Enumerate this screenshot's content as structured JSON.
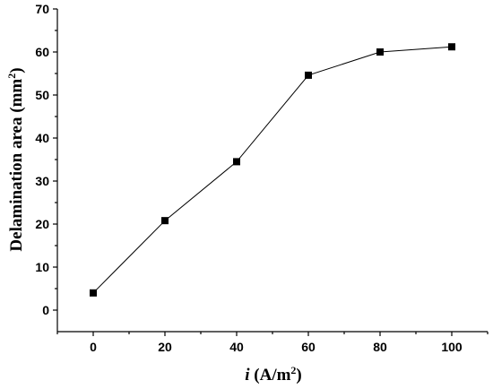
{
  "chart_data": {
    "type": "line",
    "title": "",
    "xlabel": {
      "italic": "i",
      "pre": " (A/m",
      "sup": "2",
      "post": ")"
    },
    "ylabel": {
      "pre": "Delamination area (mm",
      "sup": "2",
      "post": ")"
    },
    "xlim": [
      -10,
      110
    ],
    "ylim": [
      -5,
      70
    ],
    "xticks": [
      0,
      20,
      40,
      60,
      80,
      100
    ],
    "yticks": [
      0,
      10,
      20,
      30,
      40,
      50,
      60,
      70
    ],
    "grid": false,
    "series": [
      {
        "x": [
          0,
          20,
          40,
          60,
          80,
          100
        ],
        "y": [
          4.0,
          20.8,
          34.5,
          54.6,
          60.0,
          61.2
        ],
        "marker": "square",
        "color": "#000000"
      }
    ]
  }
}
